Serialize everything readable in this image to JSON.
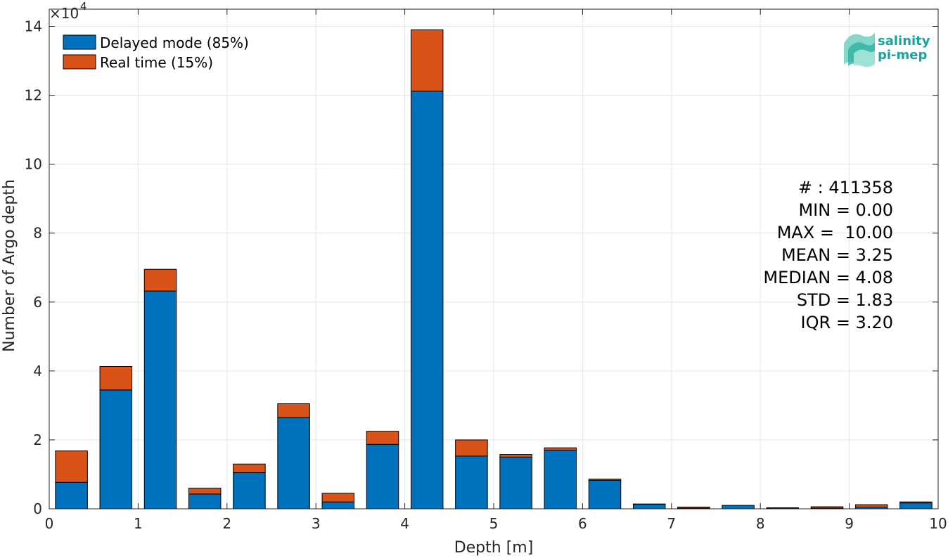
{
  "chart_data": {
    "type": "bar",
    "stacked": true,
    "xlabel": "Depth [m]",
    "ylabel": "Number of Argo depth",
    "y_multiplier_label": "×10",
    "y_multiplier_exponent": "4",
    "xlim": [
      0,
      10
    ],
    "ylim": [
      0,
      14.5
    ],
    "xticks": [
      "0",
      "1",
      "2",
      "3",
      "4",
      "5",
      "6",
      "7",
      "8",
      "9",
      "10"
    ],
    "yticks": [
      "0",
      "2",
      "4",
      "6",
      "8",
      "10",
      "12",
      "14"
    ],
    "grid": true,
    "legend_position": "top-left",
    "bin_width": 0.5,
    "x": [
      0.25,
      0.75,
      1.25,
      1.75,
      2.25,
      2.75,
      3.25,
      3.75,
      4.25,
      4.75,
      5.25,
      5.75,
      6.25,
      6.75,
      7.25,
      7.75,
      8.25,
      8.75,
      9.25,
      9.75
    ],
    "series": [
      {
        "name": "Delayed mode (85%)",
        "color": "#0072bd",
        "values": [
          0.77,
          3.45,
          6.32,
          0.43,
          1.05,
          2.65,
          0.2,
          1.87,
          12.12,
          1.53,
          1.5,
          1.7,
          0.83,
          0.13,
          0.02,
          0.1,
          0.02,
          0.02,
          0.05,
          0.17
        ]
      },
      {
        "name": "Real time (15%)",
        "color": "#d95319",
        "values": [
          0.91,
          0.68,
          0.63,
          0.17,
          0.25,
          0.4,
          0.25,
          0.38,
          1.78,
          0.47,
          0.08,
          0.07,
          0.03,
          0.01,
          0.03,
          0.0,
          0.01,
          0.04,
          0.07,
          0.03
        ]
      }
    ],
    "stats": [
      "# : 411358",
      "MIN = 0.00",
      "MAX =  10.00",
      "MEAN = 3.25",
      "MEDIAN = 4.08",
      "STD = 1.83",
      "IQR = 3.20"
    ]
  },
  "logo": {
    "line1": "salinity",
    "line2": "pi-mep"
  }
}
